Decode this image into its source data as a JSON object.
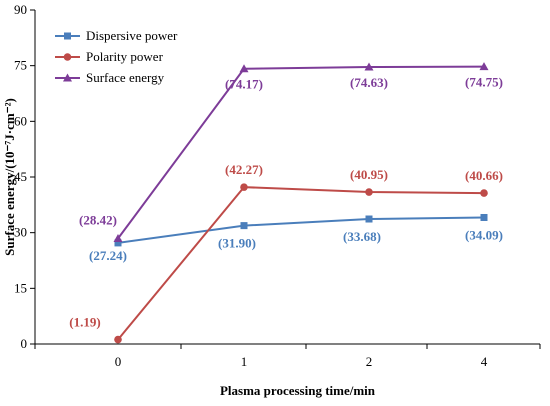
{
  "chart_data": {
    "type": "line",
    "categories": [
      "0",
      "1",
      "2",
      "4"
    ],
    "xlabel": "Plasma processing time/min",
    "ylabel": "Surface energy/(10⁻⁷J·cm⁻²)",
    "ylim": [
      0,
      90
    ],
    "yticks": [
      0,
      15,
      30,
      45,
      60,
      75,
      90
    ],
    "grid": false,
    "legend_placement": "top-left",
    "series": [
      {
        "name": "Dispersive power",
        "color": "#4a7ebb",
        "marker": "square",
        "values": [
          27.24,
          31.9,
          33.68,
          34.09
        ],
        "labels": [
          "(27.24)",
          "(31.90)",
          "(33.68)",
          "(34.09)"
        ]
      },
      {
        "name": "Polarity power",
        "color": "#be4b48",
        "marker": "circle",
        "values": [
          1.19,
          42.27,
          40.95,
          40.66
        ],
        "labels": [
          "(1.19)",
          "(42.27)",
          "(40.95)",
          "(40.66)"
        ]
      },
      {
        "name": "Surface energy",
        "color": "#7d3c98",
        "marker": "triangle",
        "values": [
          28.42,
          74.17,
          74.63,
          74.75
        ],
        "labels": [
          "(28.42)",
          "(74.17)",
          "(74.63)",
          "(74.75)"
        ]
      }
    ]
  }
}
